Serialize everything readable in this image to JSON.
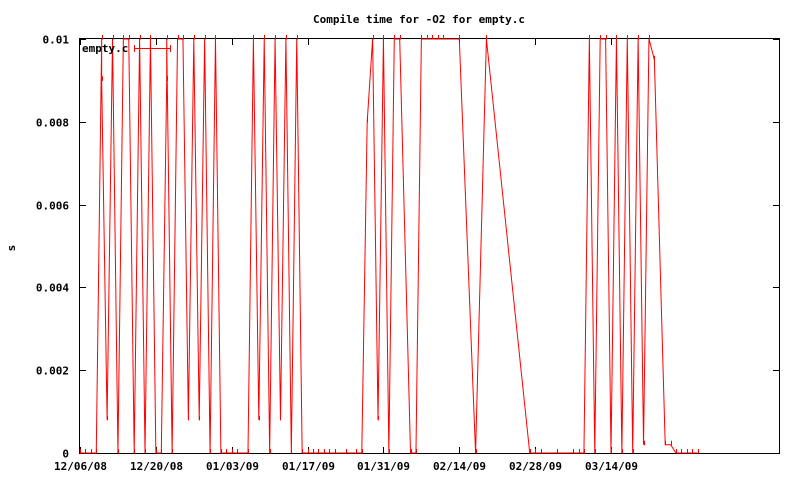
{
  "chart_data": {
    "type": "line",
    "title": "Compile time for -O2 for empty.c",
    "xlabel": "",
    "ylabel": "s",
    "x_axis_type": "date",
    "xlim": [
      "2008-12-06",
      "2009-04-14"
    ],
    "ylim": [
      0,
      0.01
    ],
    "x_tick_labels": [
      {
        "date": "2008-12-06",
        "label": "12/06/08"
      },
      {
        "date": "2008-12-20",
        "label": "12/20/08"
      },
      {
        "date": "2009-01-03",
        "label": "01/03/09"
      },
      {
        "date": "2009-01-17",
        "label": "01/17/09"
      },
      {
        "date": "2009-01-31",
        "label": "01/31/09"
      },
      {
        "date": "2009-02-14",
        "label": "02/14/09"
      },
      {
        "date": "2009-02-28",
        "label": "02/28/09"
      },
      {
        "date": "2009-03-14",
        "label": "03/14/09"
      }
    ],
    "y_ticks": [
      {
        "value": 0,
        "label": "0"
      },
      {
        "value": 0.002,
        "label": "0.002"
      },
      {
        "value": 0.004,
        "label": "0.004"
      },
      {
        "value": 0.006,
        "label": "0.006"
      },
      {
        "value": 0.008,
        "label": "0.008"
      },
      {
        "value": 0.01,
        "label": "0.01"
      }
    ],
    "grid": false,
    "legend_position": "top-left",
    "series": [
      {
        "name": "empty.c",
        "color": "#ff0000",
        "points": [
          [
            "2008-12-06",
            0
          ],
          [
            "2008-12-07",
            0
          ],
          [
            "2008-12-08",
            0
          ],
          [
            "2008-12-09",
            0
          ],
          [
            "2008-12-10",
            0.01
          ],
          [
            "2008-12-10",
            0.009
          ],
          [
            "2008-12-11",
            0.0008
          ],
          [
            "2008-12-12",
            0.01
          ],
          [
            "2008-12-13",
            0
          ],
          [
            "2008-12-14",
            0.01
          ],
          [
            "2008-12-15",
            0.01
          ],
          [
            "2008-12-16",
            0
          ],
          [
            "2008-12-17",
            0.01
          ],
          [
            "2008-12-18",
            0
          ],
          [
            "2008-12-19",
            0.01
          ],
          [
            "2008-12-20",
            0
          ],
          [
            "2008-12-21",
            0
          ],
          [
            "2008-12-22",
            0.009
          ],
          [
            "2008-12-22",
            0.01
          ],
          [
            "2008-12-23",
            0
          ],
          [
            "2008-12-24",
            0.01
          ],
          [
            "2008-12-25",
            0.01
          ],
          [
            "2008-12-26",
            0.0008
          ],
          [
            "2008-12-27",
            0.01
          ],
          [
            "2008-12-28",
            0.0008
          ],
          [
            "2008-12-29",
            0.01
          ],
          [
            "2008-12-30",
            0
          ],
          [
            "2008-12-31",
            0.01
          ],
          [
            "2009-01-01",
            0
          ],
          [
            "2009-01-02",
            0
          ],
          [
            "2009-01-03",
            0
          ],
          [
            "2009-01-04",
            0
          ],
          [
            "2009-01-06",
            0
          ],
          [
            "2009-01-07",
            0.01
          ],
          [
            "2009-01-08",
            0.0008
          ],
          [
            "2009-01-09",
            0.01
          ],
          [
            "2009-01-10",
            0
          ],
          [
            "2009-01-11",
            0.01
          ],
          [
            "2009-01-12",
            0.0008
          ],
          [
            "2009-01-13",
            0.01
          ],
          [
            "2009-01-14",
            0
          ],
          [
            "2009-01-15",
            0.01
          ],
          [
            "2009-01-16",
            0
          ],
          [
            "2009-01-17",
            0
          ],
          [
            "2009-01-18",
            0
          ],
          [
            "2009-01-19",
            0
          ],
          [
            "2009-01-20",
            0
          ],
          [
            "2009-01-21",
            0
          ],
          [
            "2009-01-22",
            0
          ],
          [
            "2009-01-24",
            0
          ],
          [
            "2009-01-26",
            0
          ],
          [
            "2009-01-27",
            0
          ],
          [
            "2009-01-28",
            0.008
          ],
          [
            "2009-01-29",
            0.01
          ],
          [
            "2009-01-30",
            0.0008
          ],
          [
            "2009-01-31",
            0.01
          ],
          [
            "2009-02-01",
            0
          ],
          [
            "2009-02-02",
            0.01
          ],
          [
            "2009-02-03",
            0.01
          ],
          [
            "2009-02-05",
            0
          ],
          [
            "2009-02-06",
            0
          ],
          [
            "2009-02-07",
            0.01
          ],
          [
            "2009-02-08",
            0.01
          ],
          [
            "2009-02-09",
            0.01
          ],
          [
            "2009-02-10",
            0.01
          ],
          [
            "2009-02-11",
            0.01
          ],
          [
            "2009-02-14",
            0.01
          ],
          [
            "2009-02-17",
            0
          ],
          [
            "2009-02-19",
            0.01
          ],
          [
            "2009-02-27",
            0
          ],
          [
            "2009-02-28",
            0
          ],
          [
            "2009-03-01",
            0
          ],
          [
            "2009-03-04",
            0
          ],
          [
            "2009-03-07",
            0
          ],
          [
            "2009-03-08",
            0
          ],
          [
            "2009-03-09",
            0
          ],
          [
            "2009-03-10",
            0.01
          ],
          [
            "2009-03-11",
            0
          ],
          [
            "2009-03-12",
            0.01
          ],
          [
            "2009-03-13",
            0.01
          ],
          [
            "2009-03-14",
            0
          ],
          [
            "2009-03-15",
            0.01
          ],
          [
            "2009-03-16",
            0
          ],
          [
            "2009-03-17",
            0.01
          ],
          [
            "2009-03-18",
            0
          ],
          [
            "2009-03-19",
            0.01
          ],
          [
            "2009-03-20",
            0.0002
          ],
          [
            "2009-03-21",
            0.01
          ],
          [
            "2009-03-22",
            0.0095
          ],
          [
            "2009-03-24",
            0.0002
          ],
          [
            "2009-03-25",
            0.0002
          ],
          [
            "2009-03-26",
            0
          ],
          [
            "2009-03-27",
            0
          ],
          [
            "2009-03-28",
            0
          ],
          [
            "2009-03-29",
            0
          ],
          [
            "2009-03-30",
            0
          ]
        ]
      }
    ]
  }
}
